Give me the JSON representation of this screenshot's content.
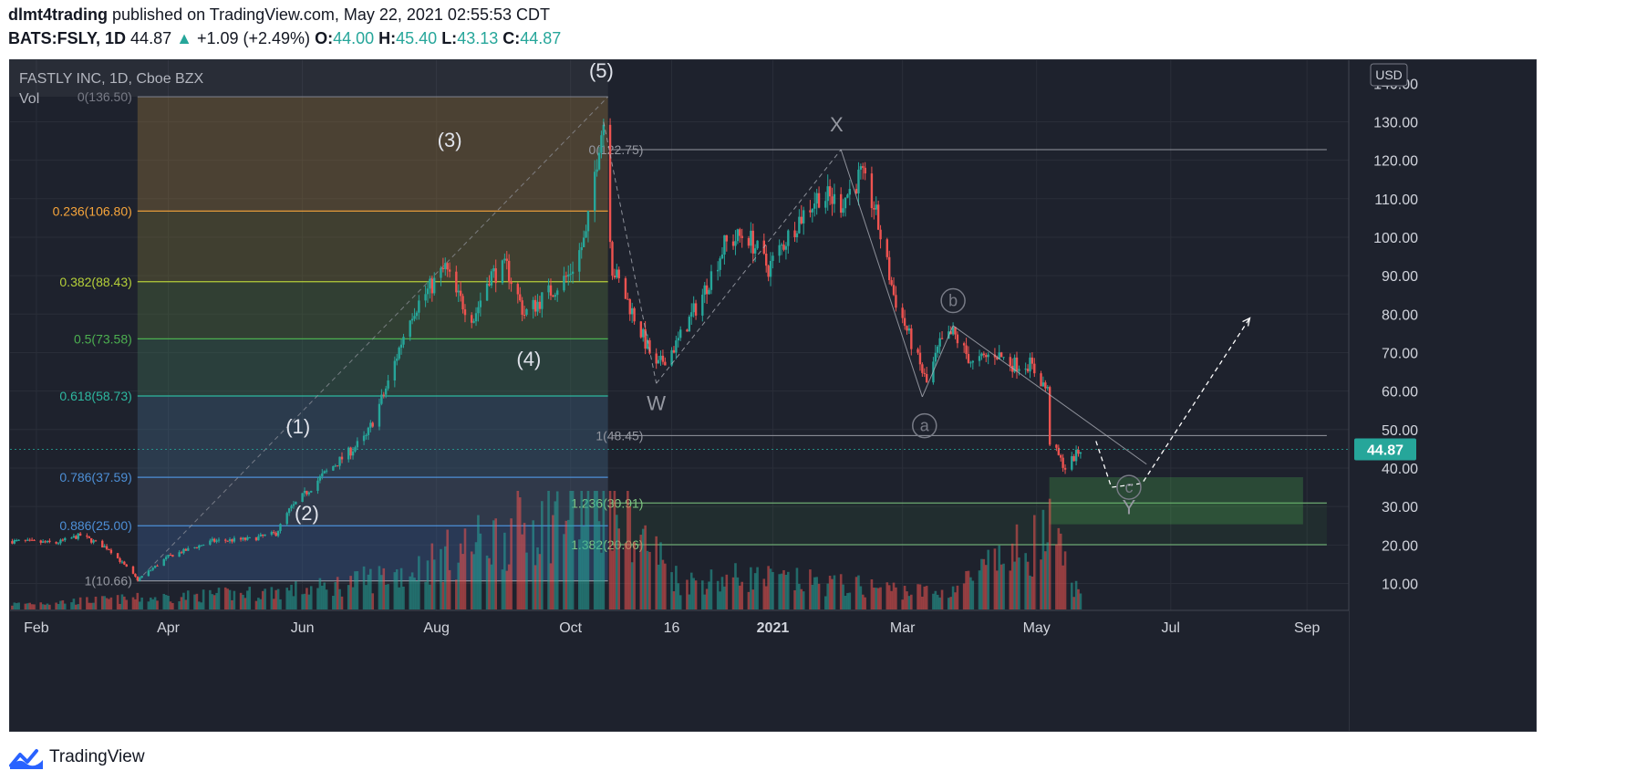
{
  "header": {
    "author": "dlmt4trading",
    "published_text": "published on TradingView.com, May 22, 2021 02:55:53 CDT",
    "symbol": "BATS:FSLY, 1D",
    "last": "44.87",
    "change": "+1.09 (+2.49%)",
    "o_label": "O:",
    "o": "44.00",
    "h_label": "H:",
    "h": "45.40",
    "l_label": "L:",
    "l": "43.13",
    "c_label": "C:",
    "c": "44.87"
  },
  "legend": {
    "title": "FASTLY INC, 1D, Cboe BZX",
    "vol_label": "Vol"
  },
  "currency": "USD",
  "last_price_badge": "44.87",
  "footer": {
    "brand": "TradingView"
  },
  "colors": {
    "background": "#1e222d",
    "up": "#26a69a",
    "down": "#ef5350",
    "grid": "#2a2e39",
    "text": "#b2b5be"
  },
  "chart_data": {
    "type": "candlestick",
    "title": "FASTLY INC, 1D, Cboe BZX",
    "ylim": [
      3,
      146
    ],
    "y_ticks": [
      "10.00",
      "20.00",
      "30.00",
      "40.00",
      "50.00",
      "60.00",
      "70.00",
      "80.00",
      "90.00",
      "100.00",
      "110.00",
      "120.00",
      "130.00"
    ],
    "y_tick_values": [
      10,
      20,
      30,
      40,
      50,
      60,
      70,
      80,
      90,
      100,
      110,
      120,
      130
    ],
    "x_ticks": [
      "Feb",
      "Apr",
      "Jun",
      "Aug",
      "Oct",
      "16",
      "2021",
      "Mar",
      "May",
      "Jul",
      "Sep"
    ],
    "x_tick_dates": [
      "2020-02-01",
      "2020-04-01",
      "2020-06-01",
      "2020-08-01",
      "2020-10-01",
      "2020-11-16",
      "2021-01-01",
      "2021-03-01",
      "2021-05-01",
      "2021-07-01",
      "2021-09-01"
    ],
    "x_range": [
      "2020-01-20",
      "2021-09-20"
    ],
    "close_path": [
      [
        "2020-01-21",
        21
      ],
      [
        "2020-02-10",
        20.5
      ],
      [
        "2020-02-21",
        22.5
      ],
      [
        "2020-03-05",
        19
      ],
      [
        "2020-03-18",
        11
      ],
      [
        "2020-04-01",
        17
      ],
      [
        "2020-04-21",
        21
      ],
      [
        "2020-05-08",
        21.5
      ],
      [
        "2020-05-20",
        23
      ],
      [
        "2020-05-26",
        29
      ],
      [
        "2020-06-10",
        38
      ],
      [
        "2020-06-30",
        48
      ],
      [
        "2020-07-10",
        62
      ],
      [
        "2020-07-20",
        80
      ],
      [
        "2020-07-28",
        86
      ],
      [
        "2020-08-05",
        92
      ],
      [
        "2020-08-10",
        85
      ],
      [
        "2020-08-18",
        79
      ],
      [
        "2020-08-25",
        90
      ],
      [
        "2020-09-02",
        92
      ],
      [
        "2020-09-10",
        80
      ],
      [
        "2020-09-18",
        84
      ],
      [
        "2020-09-30",
        90
      ],
      [
        "2020-10-08",
        100
      ],
      [
        "2020-10-14",
        125
      ],
      [
        "2020-10-16",
        130
      ],
      [
        "2020-10-20",
        92
      ],
      [
        "2020-10-28",
        82
      ],
      [
        "2020-11-09",
        66
      ],
      [
        "2020-11-18",
        72
      ],
      [
        "2020-11-30",
        85
      ],
      [
        "2020-12-10",
        98
      ],
      [
        "2020-12-20",
        101
      ],
      [
        "2020-12-30",
        92
      ],
      [
        "2021-01-12",
        104
      ],
      [
        "2021-01-22",
        111
      ],
      [
        "2021-02-01",
        109
      ],
      [
        "2021-02-10",
        116
      ],
      [
        "2021-02-16",
        108
      ],
      [
        "2021-02-25",
        85
      ],
      [
        "2021-03-08",
        68
      ],
      [
        "2021-03-12",
        62
      ],
      [
        "2021-03-18",
        72
      ],
      [
        "2021-03-24",
        75
      ],
      [
        "2021-04-02",
        67
      ],
      [
        "2021-04-12",
        70
      ],
      [
        "2021-04-20",
        67
      ],
      [
        "2021-04-28",
        67
      ],
      [
        "2021-05-06",
        60
      ],
      [
        "2021-05-07",
        47
      ],
      [
        "2021-05-14",
        40
      ],
      [
        "2021-05-21",
        44.87
      ]
    ],
    "volume_path": [
      [
        "2020-01-21",
        1
      ],
      [
        "2020-03-15",
        2
      ],
      [
        "2020-05-10",
        3
      ],
      [
        "2020-06-10",
        4
      ],
      [
        "2020-07-20",
        7
      ],
      [
        "2020-08-06",
        10
      ],
      [
        "2020-10-18",
        21
      ],
      [
        "2020-11-20",
        5
      ],
      [
        "2020-12-18",
        6
      ],
      [
        "2021-02-18",
        4
      ],
      [
        "2021-03-20",
        3
      ],
      [
        "2021-05-07",
        14
      ],
      [
        "2021-05-21",
        2
      ]
    ],
    "fib_retracement": {
      "x_range": [
        "2020-03-18",
        "2020-10-18"
      ],
      "levels": [
        {
          "label": "0(136.50)",
          "price": 136.5,
          "color": "#787b86"
        },
        {
          "label": "0.236(106.80)",
          "price": 106.8,
          "color": "#f7a53b"
        },
        {
          "label": "0.382(88.43)",
          "price": 88.43,
          "color": "#b5cf39"
        },
        {
          "label": "0.5(73.58)",
          "price": 73.58,
          "color": "#4caf50"
        },
        {
          "label": "0.618(58.73)",
          "price": 58.73,
          "color": "#2eb8a0"
        },
        {
          "label": "0.786(37.59)",
          "price": 37.59,
          "color": "#4d8fd6"
        },
        {
          "label": "0.886(25.00)",
          "price": 25.0,
          "color": "#4d8fd6"
        },
        {
          "label": "1(10.66)",
          "price": 10.66,
          "color": "#9598a1"
        }
      ]
    },
    "fib_extension": {
      "x_range": [
        "2020-10-20",
        "2021-09-10"
      ],
      "levels": [
        {
          "label": "0(122.75)",
          "price": 122.75,
          "color": "#9598a1"
        },
        {
          "label": "1(48.45)",
          "price": 48.45,
          "color": "#9598a1"
        },
        {
          "label": "1.236(30.91)",
          "price": 30.91,
          "color": "#81c784"
        },
        {
          "label": "1.382(20.06)",
          "price": 20.06,
          "color": "#81c784"
        }
      ]
    },
    "target_box": {
      "x_range": [
        "2021-05-07",
        "2021-08-30"
      ],
      "price_range": [
        25.5,
        37.5
      ]
    },
    "wave_labels": [
      {
        "text": "(1)",
        "date": "2020-05-30",
        "price": 49
      },
      {
        "text": "(2)",
        "date": "2020-06-03",
        "price": 26.5
      },
      {
        "text": "(3)",
        "date": "2020-08-07",
        "price": 123.5
      },
      {
        "text": "(4)",
        "date": "2020-09-12",
        "price": 66.5
      },
      {
        "text": "(5)",
        "date": "2020-10-15",
        "price": 141.5
      },
      {
        "text": "W",
        "date": "2020-11-09",
        "price": 55
      },
      {
        "text": "X",
        "date": "2021-01-30",
        "price": 127.5
      },
      {
        "text": "Y",
        "date": "2021-06-12",
        "price": 28
      }
    ],
    "circled_labels": [
      {
        "text": "a",
        "date": "2021-03-11",
        "price": 51
      },
      {
        "text": "b",
        "date": "2021-03-24",
        "price": 83.5
      },
      {
        "text": "c",
        "date": "2021-06-12",
        "price": 35
      }
    ],
    "projection_path": [
      [
        "2021-05-28",
        47
      ],
      [
        "2021-06-04",
        35
      ],
      [
        "2021-06-18",
        36
      ],
      [
        "2021-08-06",
        79
      ]
    ],
    "y_tick_extra": "140.00"
  }
}
